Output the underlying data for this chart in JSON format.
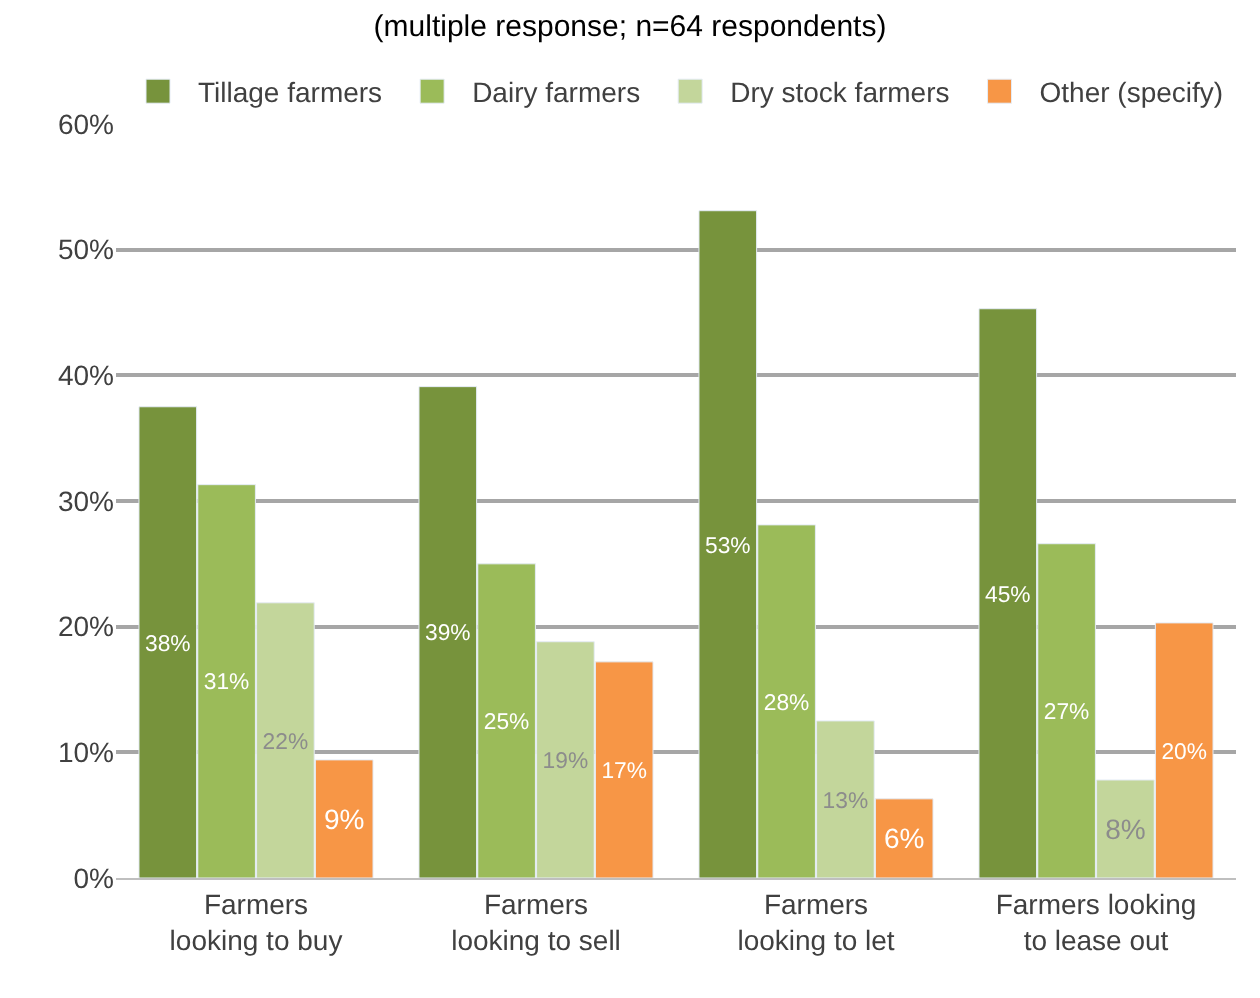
{
  "chart_data": {
    "type": "bar",
    "title": "(multiple response; n=64 respondents)",
    "categories": [
      "Farmers\nlooking to buy",
      "Farmers\nlooking to sell",
      "Farmers\nlooking to let",
      "Farmers looking\nto lease out"
    ],
    "series": [
      {
        "name": "Tillage farmers",
        "color": "#77933c",
        "values": [
          37.5,
          39.1,
          53.1,
          45.3
        ],
        "value_labels": [
          "38%",
          "39%",
          "53%",
          "45%"
        ]
      },
      {
        "name": "Dairy farmers",
        "color": "#9bbb59",
        "values": [
          31.3,
          25.0,
          28.1,
          26.6
        ],
        "value_labels": [
          "31%",
          "25%",
          "28%",
          "27%"
        ]
      },
      {
        "name": "Dry stock farmers",
        "color": "#c3d69b",
        "values": [
          21.9,
          18.8,
          12.5,
          7.8
        ],
        "value_labels": [
          "22%",
          "19%",
          "13%",
          "8%"
        ]
      },
      {
        "name": "Other (specify)",
        "color": "#f79646",
        "values": [
          9.4,
          17.2,
          6.3,
          20.3
        ],
        "value_labels": [
          "9%",
          "17%",
          "6%",
          "20%"
        ]
      }
    ],
    "ylim": [
      0,
      60
    ],
    "yticks": [
      {
        "value": 0,
        "label": "0%"
      },
      {
        "value": 10,
        "label": "10%"
      },
      {
        "value": 20,
        "label": "20%"
      },
      {
        "value": 30,
        "label": "30%"
      },
      {
        "value": 40,
        "label": "40%"
      },
      {
        "value": 50,
        "label": "50%"
      },
      {
        "value": 60,
        "label": "60%"
      }
    ],
    "grid": "y",
    "legend": "top"
  }
}
